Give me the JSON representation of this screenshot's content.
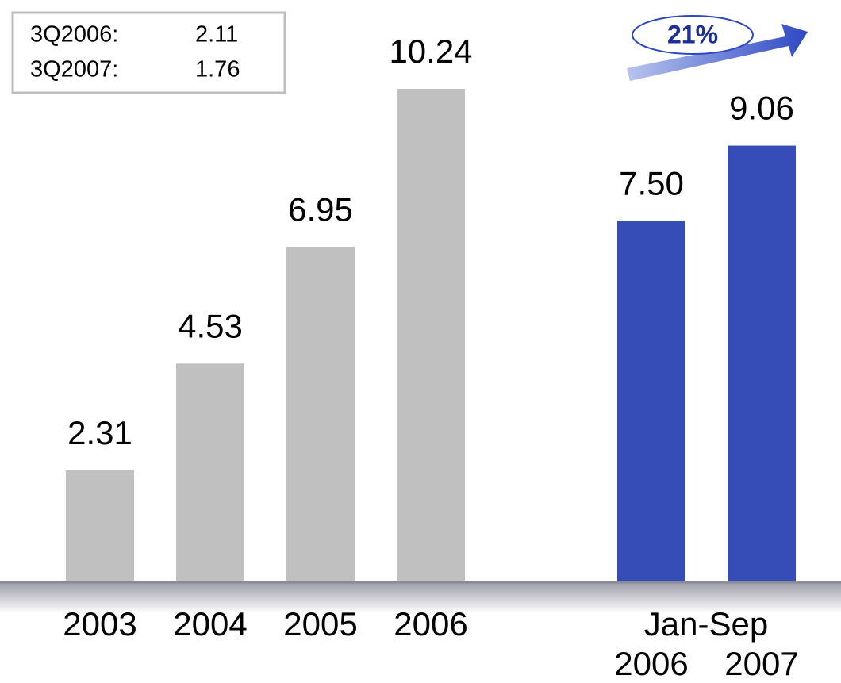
{
  "chart_data": {
    "type": "bar",
    "categories": [
      "2003",
      "2004",
      "2005",
      "2006",
      "2006",
      "2007"
    ],
    "values": [
      2.31,
      4.53,
      6.95,
      10.24,
      7.5,
      9.06
    ],
    "value_labels": [
      "2.31",
      "4.53",
      "6.95",
      "10.24",
      "7.50",
      "9.06"
    ],
    "colors": [
      "#c0c0c0",
      "#c0c0c0",
      "#c0c0c0",
      "#c0c0c0",
      "#364db8",
      "#364db8"
    ],
    "group_label": "Jan-Sep",
    "inset": [
      {
        "label": "3Q2006:",
        "value": 2.11
      },
      {
        "label": "3Q2007:",
        "value": 1.76
      }
    ],
    "growth_label": "21%"
  }
}
